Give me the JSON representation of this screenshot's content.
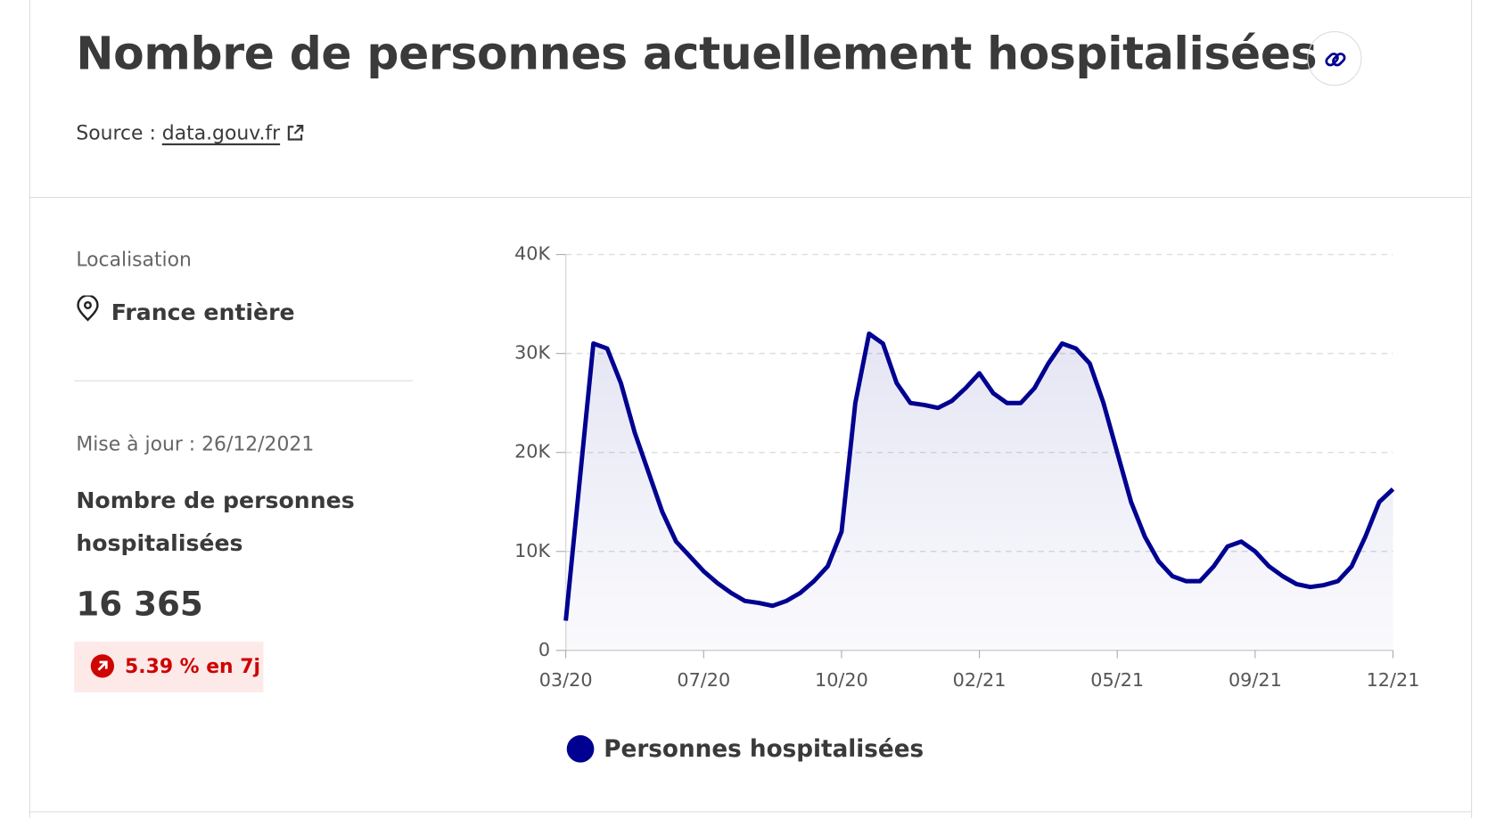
{
  "header": {
    "title": "Nombre de personnes actuellement hospitalisées",
    "source_label": "Source :",
    "source_link": "data.gouv.fr"
  },
  "sidebar": {
    "location_label": "Localisation",
    "location": "France entière",
    "updated": "Mise à jour : 26/12/2021",
    "indicator": "Nombre de personnes hospitalisées",
    "value": "16 365",
    "change": "5.39 % en 7j"
  },
  "chart_data": {
    "type": "line",
    "area": true,
    "grid": true,
    "categories": [
      "03/20",
      null,
      null,
      null,
      null,
      null,
      null,
      null,
      null,
      null,
      "07/20",
      null,
      null,
      null,
      null,
      null,
      null,
      null,
      null,
      null,
      "10/20",
      null,
      null,
      null,
      null,
      null,
      null,
      null,
      null,
      null,
      "02/21",
      null,
      null,
      null,
      null,
      null,
      null,
      null,
      null,
      null,
      "05/21",
      null,
      null,
      null,
      null,
      null,
      null,
      null,
      null,
      null,
      "09/21",
      null,
      null,
      null,
      null,
      null,
      null,
      null,
      null,
      null,
      "12/21"
    ],
    "series": [
      {
        "name": "Personnes hospitalisées",
        "color": "#000091",
        "values": [
          3000,
          17000,
          31000,
          30500,
          27000,
          22000,
          18000,
          14000,
          11000,
          9500,
          8000,
          6800,
          5800,
          5000,
          4800,
          4500,
          5000,
          5800,
          7000,
          8500,
          12000,
          25000,
          32000,
          31000,
          27000,
          25000,
          24800,
          24500,
          25200,
          26500,
          28000,
          26000,
          25000,
          25000,
          26500,
          29000,
          31000,
          30500,
          29000,
          25000,
          20000,
          15000,
          11500,
          9000,
          7500,
          7000,
          7000,
          8500,
          10500,
          11000,
          10000,
          8500,
          7500,
          6700,
          6400,
          6600,
          7000,
          8500,
          11500,
          15000,
          16300
        ]
      }
    ],
    "ylim": [
      0,
      40000
    ],
    "yticks": [
      0,
      {
        "value": 10000,
        "label": "10K"
      },
      {
        "value": 20000,
        "label": "20K"
      },
      {
        "value": 30000,
        "label": "30K"
      },
      {
        "value": 40000,
        "label": "40K"
      }
    ]
  }
}
